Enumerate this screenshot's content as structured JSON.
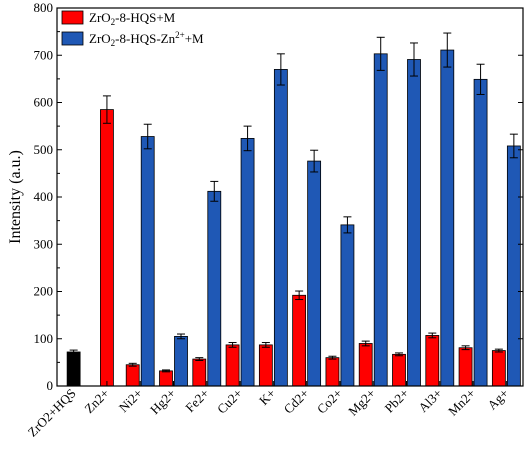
{
  "chart_data": {
    "type": "bar",
    "ylabel": "Intensity (a.u.)",
    "xlabel": "",
    "ylim": [
      0,
      800
    ],
    "yticks": [
      0,
      100,
      200,
      300,
      400,
      500,
      600,
      700,
      800
    ],
    "categories": [
      "ZrO2+HQS",
      "Zn2+",
      "Ni2+",
      "Hg2+",
      "Fe2+",
      "Cu2+",
      "K+",
      "Cd2+",
      "Co2+",
      "Mg2+",
      "Pb2+",
      "Al3+",
      "Mn2+",
      "Ag+"
    ],
    "legend_position": "top-left",
    "series": [
      {
        "name": "ZrO2-8-HQS",
        "color": "#000000",
        "values": [
          72,
          null,
          null,
          null,
          null,
          null,
          null,
          null,
          null,
          null,
          null,
          null,
          null,
          null
        ],
        "errors": [
          4,
          null,
          null,
          null,
          null,
          null,
          null,
          null,
          null,
          null,
          null,
          null,
          null,
          null
        ],
        "in_legend": false
      },
      {
        "name": "ZrO2-8-HQS+M",
        "color": "#ff0000",
        "values": [
          null,
          585,
          45,
          32,
          57,
          87,
          87,
          192,
          60,
          90,
          67,
          107,
          81,
          75
        ],
        "errors": [
          null,
          29,
          3,
          2,
          3,
          5,
          5,
          9,
          3,
          5,
          3,
          5,
          4,
          3
        ],
        "in_legend": true
      },
      {
        "name": "ZrO2-8-HQS-Zn2++M",
        "color": "#1f58b5",
        "values": [
          null,
          null,
          528,
          105,
          412,
          524,
          670,
          476,
          341,
          703,
          691,
          711,
          649,
          508
        ],
        "errors": [
          null,
          null,
          26,
          5,
          21,
          26,
          33,
          23,
          17,
          35,
          35,
          36,
          32,
          25
        ],
        "in_legend": true
      }
    ]
  },
  "legend": {
    "items": [
      {
        "pre": "ZrO",
        "sub": "2",
        "post": "-8-HQS+M",
        "sup": "",
        "post2": "",
        "color": "#ff0000"
      },
      {
        "pre": "ZrO",
        "sub": "2",
        "post": "-8-HQS-Zn",
        "sup": "2+",
        "post2": "+M",
        "color": "#1f58b5"
      }
    ]
  }
}
